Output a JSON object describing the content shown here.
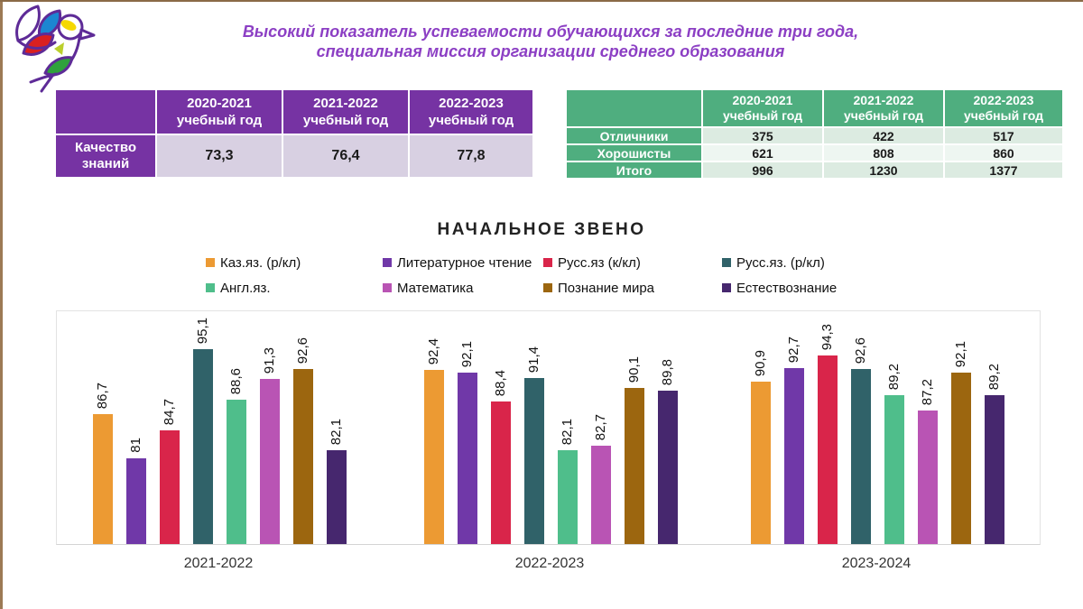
{
  "slide": {
    "title": {
      "line1": "Высокий показатель успеваемости обучающихся за последние три года,",
      "line2": "специальная миссия организации среднего образования",
      "color": "#8C3FC4"
    },
    "border_color": "#9C7A55",
    "logo": {
      "description": "bird-flower-logo",
      "outline": "#5E2B97",
      "petal_colors": [
        "#1C86D1",
        "#D92020",
        "#F5D800",
        "#2FA23C",
        "#BBCF2C"
      ]
    }
  },
  "quality_table": {
    "corner": "",
    "col_headers": [
      {
        "year": "2020-2021",
        "caption": "учебный год"
      },
      {
        "year": "2021-2022",
        "caption": "учебный год"
      },
      {
        "year": "2022-2023",
        "caption": "учебный год"
      }
    ],
    "row_label": "Качество знаний",
    "values": [
      "73,3",
      "76,4",
      "77,8"
    ],
    "colors": {
      "header_bg": "#7633A3",
      "header_text": "#FFFFFF",
      "value_bg": "#D8D0E2",
      "value_text": "#1A1A1A"
    }
  },
  "totals_table": {
    "corner": "",
    "col_headers": [
      {
        "year": "2020-2021",
        "caption": "учебный год"
      },
      {
        "year": "2021-2022",
        "caption": "учебный год"
      },
      {
        "year": "2022-2023",
        "caption": "учебный год"
      }
    ],
    "rows": [
      {
        "label": "Отличники",
        "values": [
          "375",
          "422",
          "517"
        ]
      },
      {
        "label": "Хорошисты",
        "values": [
          "621",
          "808",
          "860"
        ]
      },
      {
        "label": "Итого",
        "values": [
          "996",
          "1230",
          "1377"
        ]
      }
    ],
    "colors": {
      "header_bg": "#4FAE7F",
      "header_text": "#FFFFFF",
      "band_a": "#DCEBE1",
      "band_b": "#EEF6F1",
      "value_text": "#1A1A1A"
    }
  },
  "chart_data": {
    "type": "bar",
    "title": "НАЧАЛЬНОЕ ЗВЕНО",
    "categories": [
      "2021-2022",
      "2022-2023",
      "2023-2024"
    ],
    "series": [
      {
        "name": "Каз.яз. (р/кл)",
        "color": "#EC9A33",
        "values": [
          86.7,
          92.4,
          90.9
        ]
      },
      {
        "name": "Литературное чтение",
        "color": "#7038A8",
        "values": [
          81,
          92.1,
          92.7
        ]
      },
      {
        "name": "Русс.яз (к/кл)",
        "color": "#D9254A",
        "values": [
          84.7,
          88.4,
          94.3
        ]
      },
      {
        "name": "Русс.яз. (р/кл)",
        "color": "#306269",
        "values": [
          95.1,
          91.4,
          92.6
        ]
      },
      {
        "name": "Англ.яз.",
        "color": "#4FBE8B",
        "values": [
          88.6,
          82.1,
          89.2
        ]
      },
      {
        "name": "Математика",
        "color": "#B954B4",
        "values": [
          91.3,
          82.7,
          87.2
        ]
      },
      {
        "name": "Познание мира",
        "color": "#9C660F",
        "values": [
          92.6,
          90.1,
          92.1
        ]
      },
      {
        "name": "Естествознание",
        "color": "#46276E",
        "values": [
          82.1,
          89.8,
          89.2
        ]
      }
    ],
    "ylim": [
      70,
      100
    ],
    "grid": false,
    "legend_position": "top",
    "data_labels": {
      "rotation": 90,
      "decimal_separator": ","
    }
  }
}
